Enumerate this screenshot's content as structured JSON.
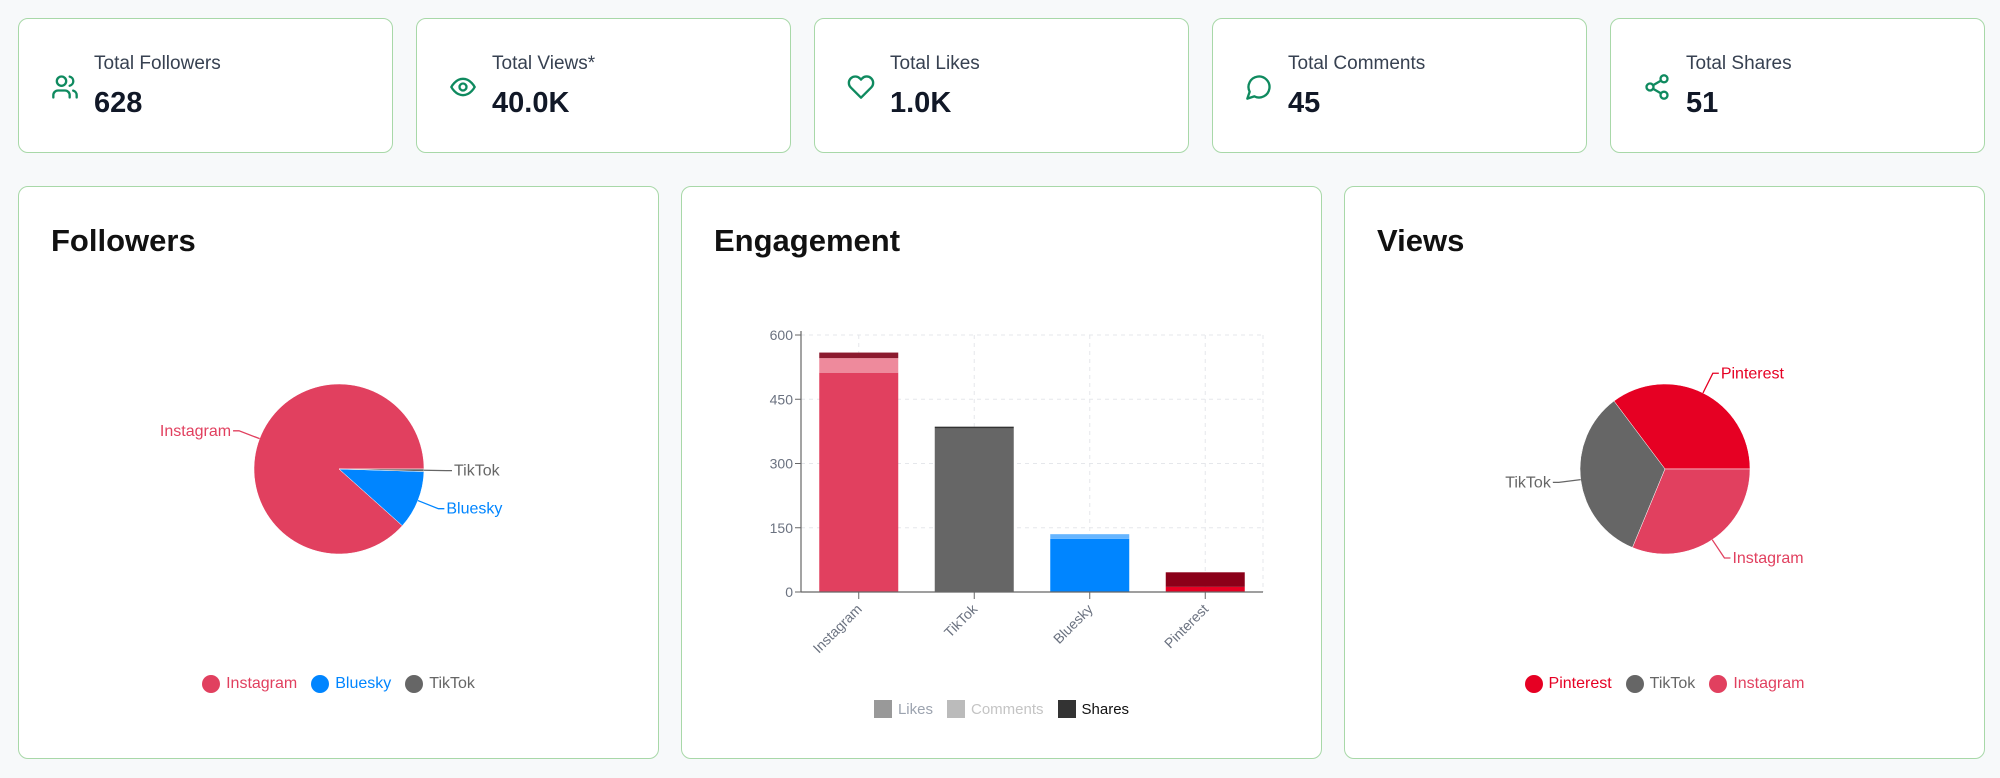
{
  "stats": [
    {
      "label": "Total Followers",
      "value": "628",
      "icon": "users-icon"
    },
    {
      "label": "Total Views*",
      "value": "40.0K",
      "icon": "eye-icon"
    },
    {
      "label": "Total Likes",
      "value": "1.0K",
      "icon": "heart-icon"
    },
    {
      "label": "Total Comments",
      "value": "45",
      "icon": "message-circle-icon"
    },
    {
      "label": "Total Shares",
      "value": "51",
      "icon": "share-icon"
    }
  ],
  "colors": {
    "accent": "#0f8a5f",
    "Instagram": "#e1405f",
    "Bluesky": "#0085ff",
    "TikTok": "#666666",
    "Pinterest": "#e60023"
  },
  "chart_data": [
    {
      "type": "pie",
      "title": "Followers",
      "categories": [
        "Instagram",
        "Bluesky",
        "TikTok"
      ],
      "values": [
        555,
        70,
        3
      ],
      "colors": [
        "#e1405f",
        "#0085ff",
        "#666666"
      ],
      "legend": [
        "Instagram",
        "Bluesky",
        "TikTok"
      ],
      "legend_position": "bottom"
    },
    {
      "type": "bar",
      "stacked": true,
      "title": "Engagement",
      "categories": [
        "Instagram",
        "TikTok",
        "Bluesky",
        "Pinterest"
      ],
      "series": [
        {
          "name": "Likes",
          "values": [
            512,
            382,
            124,
            12
          ]
        },
        {
          "name": "Comments",
          "values": [
            34,
            0,
            11,
            0
          ]
        },
        {
          "name": "Shares",
          "values": [
            13,
            4,
            0,
            34
          ]
        }
      ],
      "yticks": [
        "0",
        "150",
        "300",
        "450",
        "600"
      ],
      "ylim": [
        0,
        600
      ],
      "grid": true,
      "legend": [
        {
          "name": "Likes",
          "color": "#999999",
          "text_color": "#9ca3af"
        },
        {
          "name": "Comments",
          "color": "#bbbbbb",
          "text_color": "#c4c4c4"
        },
        {
          "name": "Shares",
          "color": "#333333",
          "text_color": "#111111"
        }
      ],
      "legend_position": "bottom",
      "bar_colors": {
        "Instagram": [
          "#e1405f",
          "#ee8a9c",
          "#8b1a2e"
        ],
        "TikTok": [
          "#666666",
          "#8a8a8a",
          "#333333"
        ],
        "Bluesky": [
          "#0085ff",
          "#66b5ff",
          "#004a8f"
        ],
        "Pinterest": [
          "#e60023",
          "#f07080",
          "#8b0019"
        ]
      }
    },
    {
      "type": "pie",
      "title": "Views",
      "categories": [
        "Pinterest",
        "TikTok",
        "Instagram"
      ],
      "values": [
        14100,
        13400,
        12500
      ],
      "colors": [
        "#e60023",
        "#666666",
        "#e1405f"
      ],
      "legend": [
        "Pinterest",
        "TikTok",
        "Instagram"
      ],
      "legend_position": "bottom"
    }
  ]
}
